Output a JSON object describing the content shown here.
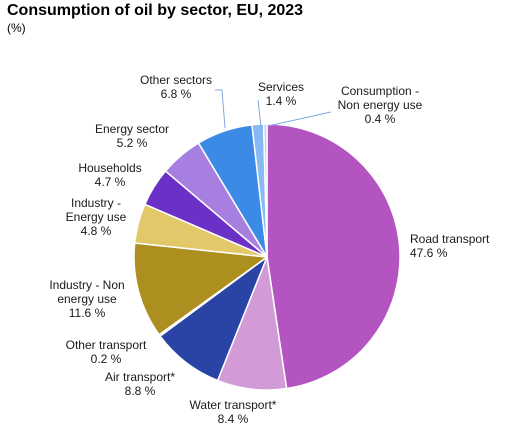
{
  "chart_data": {
    "type": "pie",
    "title": "Consumption of oil by sector, EU, 2023",
    "subtitle": "(%)",
    "value_suffix": " %",
    "slices": [
      {
        "name": "Road transport",
        "value": 47.6,
        "color": "#b354c0"
      },
      {
        "name": "Water transport*",
        "value": 8.4,
        "color": "#d39ad8"
      },
      {
        "name": "Air transport*",
        "value": 8.8,
        "color": "#2a44a5"
      },
      {
        "name": "Other transport",
        "value": 0.2,
        "color": "#6a8fd8"
      },
      {
        "name": "Industry - Non energy use",
        "value": 11.6,
        "color": "#ad8f1f"
      },
      {
        "name": "Industry - Energy use",
        "value": 4.8,
        "color": "#e3c86a"
      },
      {
        "name": "Households",
        "value": 4.7,
        "color": "#6b31c6"
      },
      {
        "name": "Energy sector",
        "value": 5.2,
        "color": "#a67fe0"
      },
      {
        "name": "Other sectors",
        "value": 6.8,
        "color": "#3b8be6"
      },
      {
        "name": "Services",
        "value": 1.4,
        "color": "#88b9f2"
      },
      {
        "name": "Consumption - Non energy use",
        "value": 0.4,
        "color": "#b7d3f6"
      }
    ]
  }
}
